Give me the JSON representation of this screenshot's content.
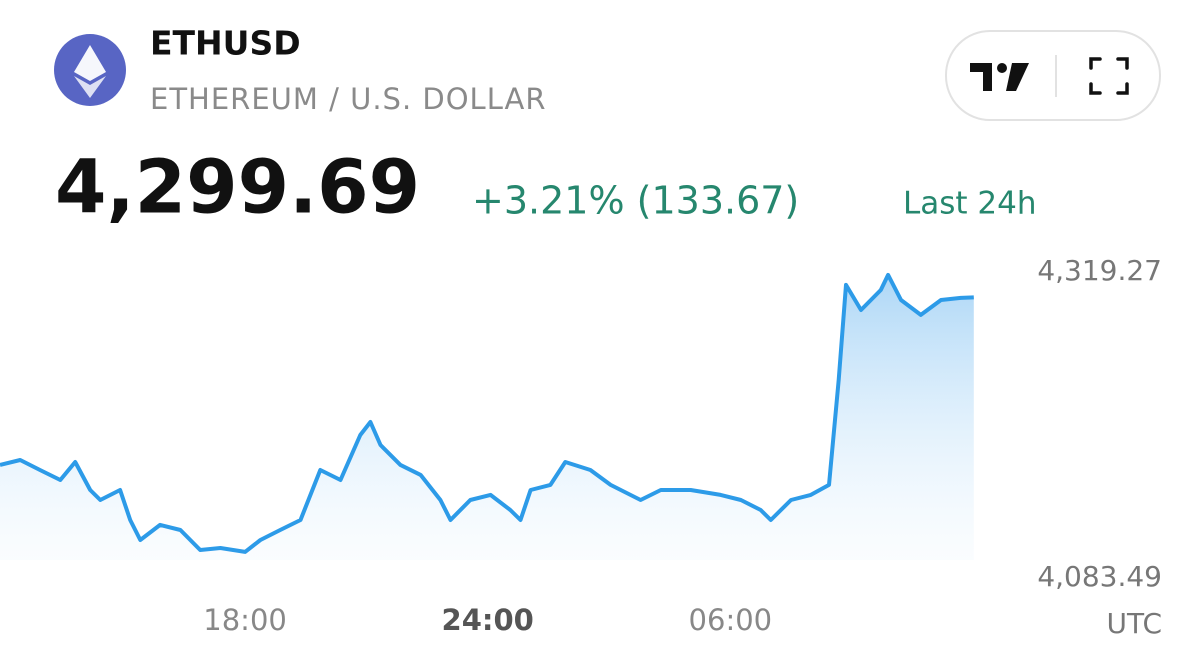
{
  "header": {
    "symbol": "ETHUSD",
    "name": "ETHEREUM / U.S. DOLLAR",
    "price": "4,299.69",
    "change": "+3.21% (133.67)",
    "period": "Last 24h"
  },
  "chart_data": {
    "type": "line",
    "color": "#2d9be8",
    "xlabel": "UTC",
    "x": [
      11.94,
      12.44,
      12.93,
      13.43,
      13.8,
      14.17,
      14.42,
      14.91,
      15.16,
      15.41,
      15.9,
      16.4,
      16.89,
      17.39,
      18.0,
      18.38,
      18.87,
      19.37,
      19.86,
      20.36,
      20.85,
      21.1,
      21.35,
      21.84,
      22.34,
      22.83,
      23.08,
      23.57,
      24.07,
      24.56,
      24.81,
      25.06,
      25.55,
      25.92,
      26.54,
      27.04,
      27.78,
      28.28,
      29.02,
      29.76,
      30.26,
      30.75,
      31.0,
      31.5,
      31.99,
      32.44,
      32.68,
      32.86,
      33.23,
      33.72,
      33.9,
      34.22,
      34.71,
      35.21,
      35.7,
      36.02
    ],
    "values": [
      4170.6,
      4174.4,
      4166.7,
      4159.0,
      4172.9,
      4151.3,
      4143.6,
      4151.3,
      4128.2,
      4112.8,
      4124.4,
      4120.5,
      4105.1,
      4106.6,
      4103.6,
      4112.8,
      4120.5,
      4128.2,
      4166.7,
      4159.0,
      4193.7,
      4203.7,
      4186.0,
      4170.6,
      4162.9,
      4143.6,
      4128.2,
      4143.6,
      4147.5,
      4135.9,
      4128.2,
      4151.3,
      4155.2,
      4172.9,
      4166.7,
      4155.2,
      4143.6,
      4151.3,
      4151.3,
      4147.5,
      4143.6,
      4135.9,
      4128.2,
      4143.6,
      4147.5,
      4155.2,
      4236.1,
      4309.3,
      4290.0,
      4305.4,
      4317.0,
      4297.7,
      4286.2,
      4297.7,
      4299.3,
      4299.7
    ],
    "xlim": [
      11.94,
      36.05
    ],
    "xticks": [
      {
        "value": 18,
        "label": "18:00"
      },
      {
        "value": 24,
        "label": "24:00"
      },
      {
        "value": 30,
        "label": "06:00"
      }
    ],
    "ylim": [
      4083.49,
      4319.27
    ],
    "yticks": [
      {
        "value": 4319.27,
        "label": "4,319.27"
      },
      {
        "value": 4083.49,
        "label": "4,083.49"
      }
    ]
  }
}
